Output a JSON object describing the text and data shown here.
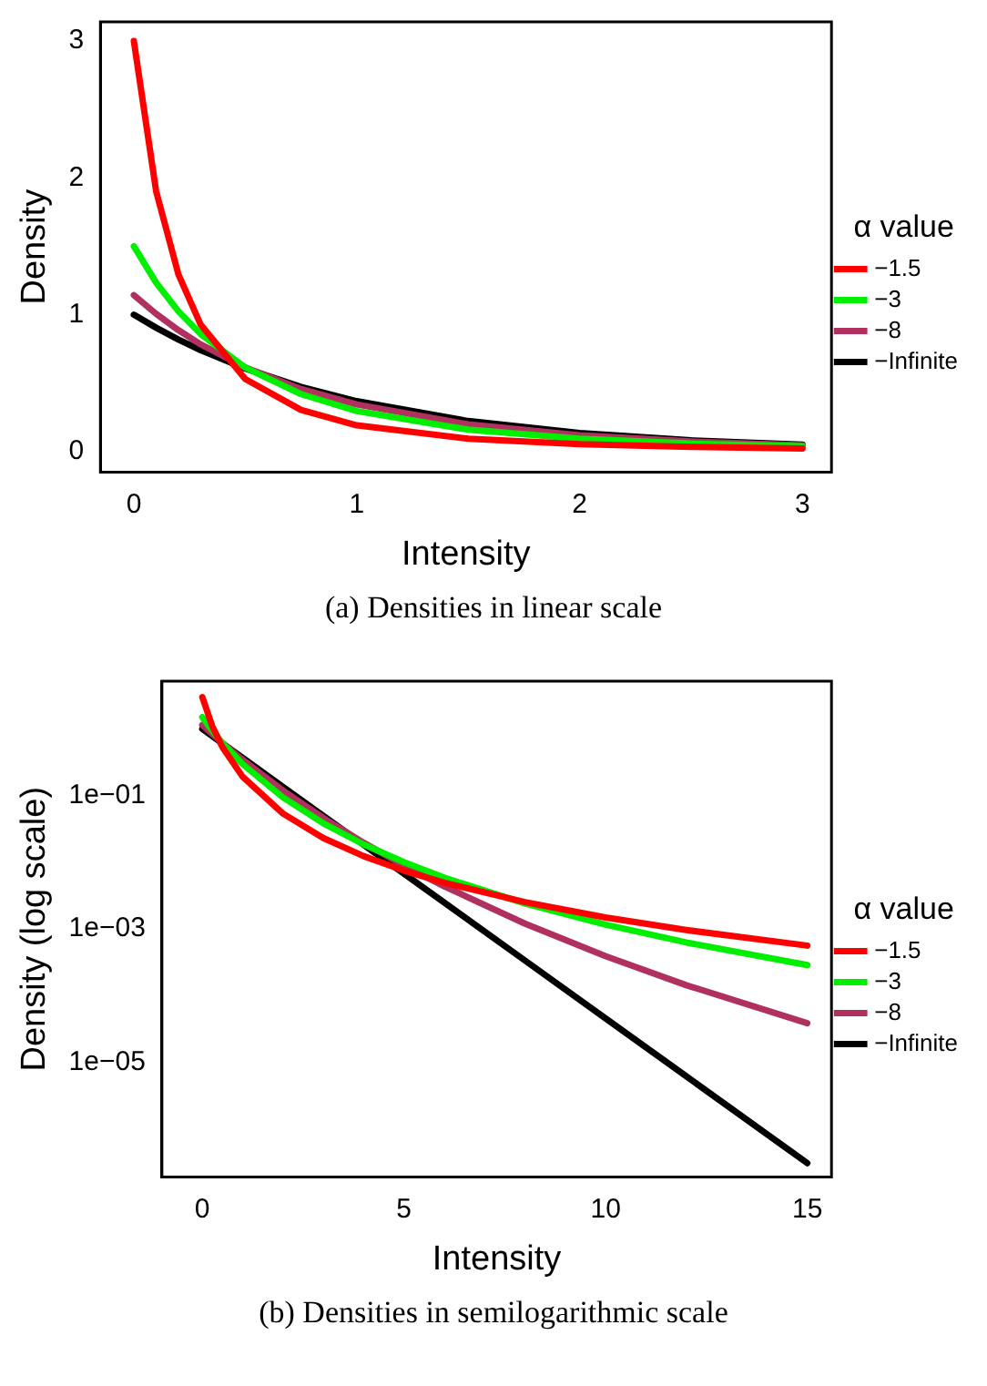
{
  "chart_data": [
    {
      "type": "line",
      "xlabel": "Intensity",
      "ylabel": "Density",
      "legend_title": "α value",
      "legend": "right",
      "grid": false,
      "marker": "none",
      "line_style": "solid",
      "xlim": [
        -0.15,
        3.13
      ],
      "ylim": [
        -0.15,
        3.14
      ],
      "xticks": [
        0,
        1,
        2,
        3
      ],
      "yticks": [
        0,
        1,
        2,
        3
      ],
      "annotations": [
        "(a) Densities in linear scale"
      ],
      "x": [
        0,
        0.1,
        0.2,
        0.3,
        0.5,
        0.75,
        1,
        1.5,
        2,
        2.5,
        3
      ],
      "series": [
        {
          "name": "−1.5",
          "color": "#ff0000",
          "values": [
            3,
            1.902,
            1.294,
            0.927,
            0.53,
            0.304,
            0.192,
            0.094,
            0.0537,
            0.034,
            0.0231
          ]
        },
        {
          "name": "−3",
          "color": "#00ee00",
          "values": [
            1.5,
            1.234,
            1.0245,
            0.858,
            0.614,
            0.42,
            0.296,
            0.16,
            0.0938,
            0.0585,
            0.0384
          ]
        },
        {
          "name": "−8",
          "color": "#b03060",
          "values": [
            1.143,
            1.006,
            0.887,
            0.783,
            0.614,
            0.457,
            0.344,
            0.199,
            0.119,
            0.0732,
            0.0461
          ]
        },
        {
          "name": "−Infinite",
          "color": "#000000",
          "values": [
            1,
            0.905,
            0.819,
            0.741,
            0.607,
            0.472,
            0.368,
            0.223,
            0.135,
            0.082,
            0.05
          ]
        }
      ]
    },
    {
      "type": "line",
      "xlabel": "Intensity",
      "ylabel": "Density (log scale)",
      "legend_title": "α value",
      "legend": "right",
      "grid": false,
      "marker": "none",
      "line_style": "solid",
      "log": "y",
      "xlim": [
        -1,
        15.6
      ],
      "ylim": [
        1.9e-07,
        5.2
      ],
      "xticks": [
        0,
        5,
        10,
        15
      ],
      "yticks": [
        {
          "value": 0.1,
          "label": "1e−01"
        },
        {
          "value": 0.001,
          "label": "1e−03"
        },
        {
          "value": 1e-05,
          "label": "1e−05"
        }
      ],
      "annotations": [
        "(b) Densities in semilogarithmic scale"
      ],
      "x": [
        0,
        0.25,
        0.5,
        1,
        2,
        3,
        4,
        5,
        6,
        8,
        10,
        12,
        15
      ],
      "series": [
        {
          "name": "−1.5",
          "color": "#ff0000",
          "values": [
            3,
            1.089,
            0.53,
            0.192,
            0.0537,
            0.0231,
            0.01235,
            0.00748,
            0.00492,
            0.00252,
            0.00148,
            0.00096,
            0.000561
          ]
        },
        {
          "name": "−3",
          "color": "#00ee00",
          "values": [
            1.5,
            0.936,
            0.614,
            0.296,
            0.0938,
            0.0384,
            0.0185,
            0.01,
            0.00586,
            0.0024,
            0.001157,
            0.000625,
            0.000287
          ]
        },
        {
          "name": "−8",
          "color": "#b03060",
          "values": [
            1.143,
            0.833,
            0.614,
            0.344,
            0.119,
            0.0461,
            0.0196,
            0.00894,
            0.00435,
            0.0012,
            0.000389,
            0.000143,
            3.85e-05
          ]
        },
        {
          "name": "−Infinite",
          "color": "#000000",
          "values": [
            1,
            0.779,
            0.607,
            0.368,
            0.135,
            0.0498,
            0.0183,
            0.00674,
            0.00248,
            0.000335,
            4.54e-05,
            6.14e-06,
            3.06e-07
          ]
        }
      ]
    }
  ]
}
